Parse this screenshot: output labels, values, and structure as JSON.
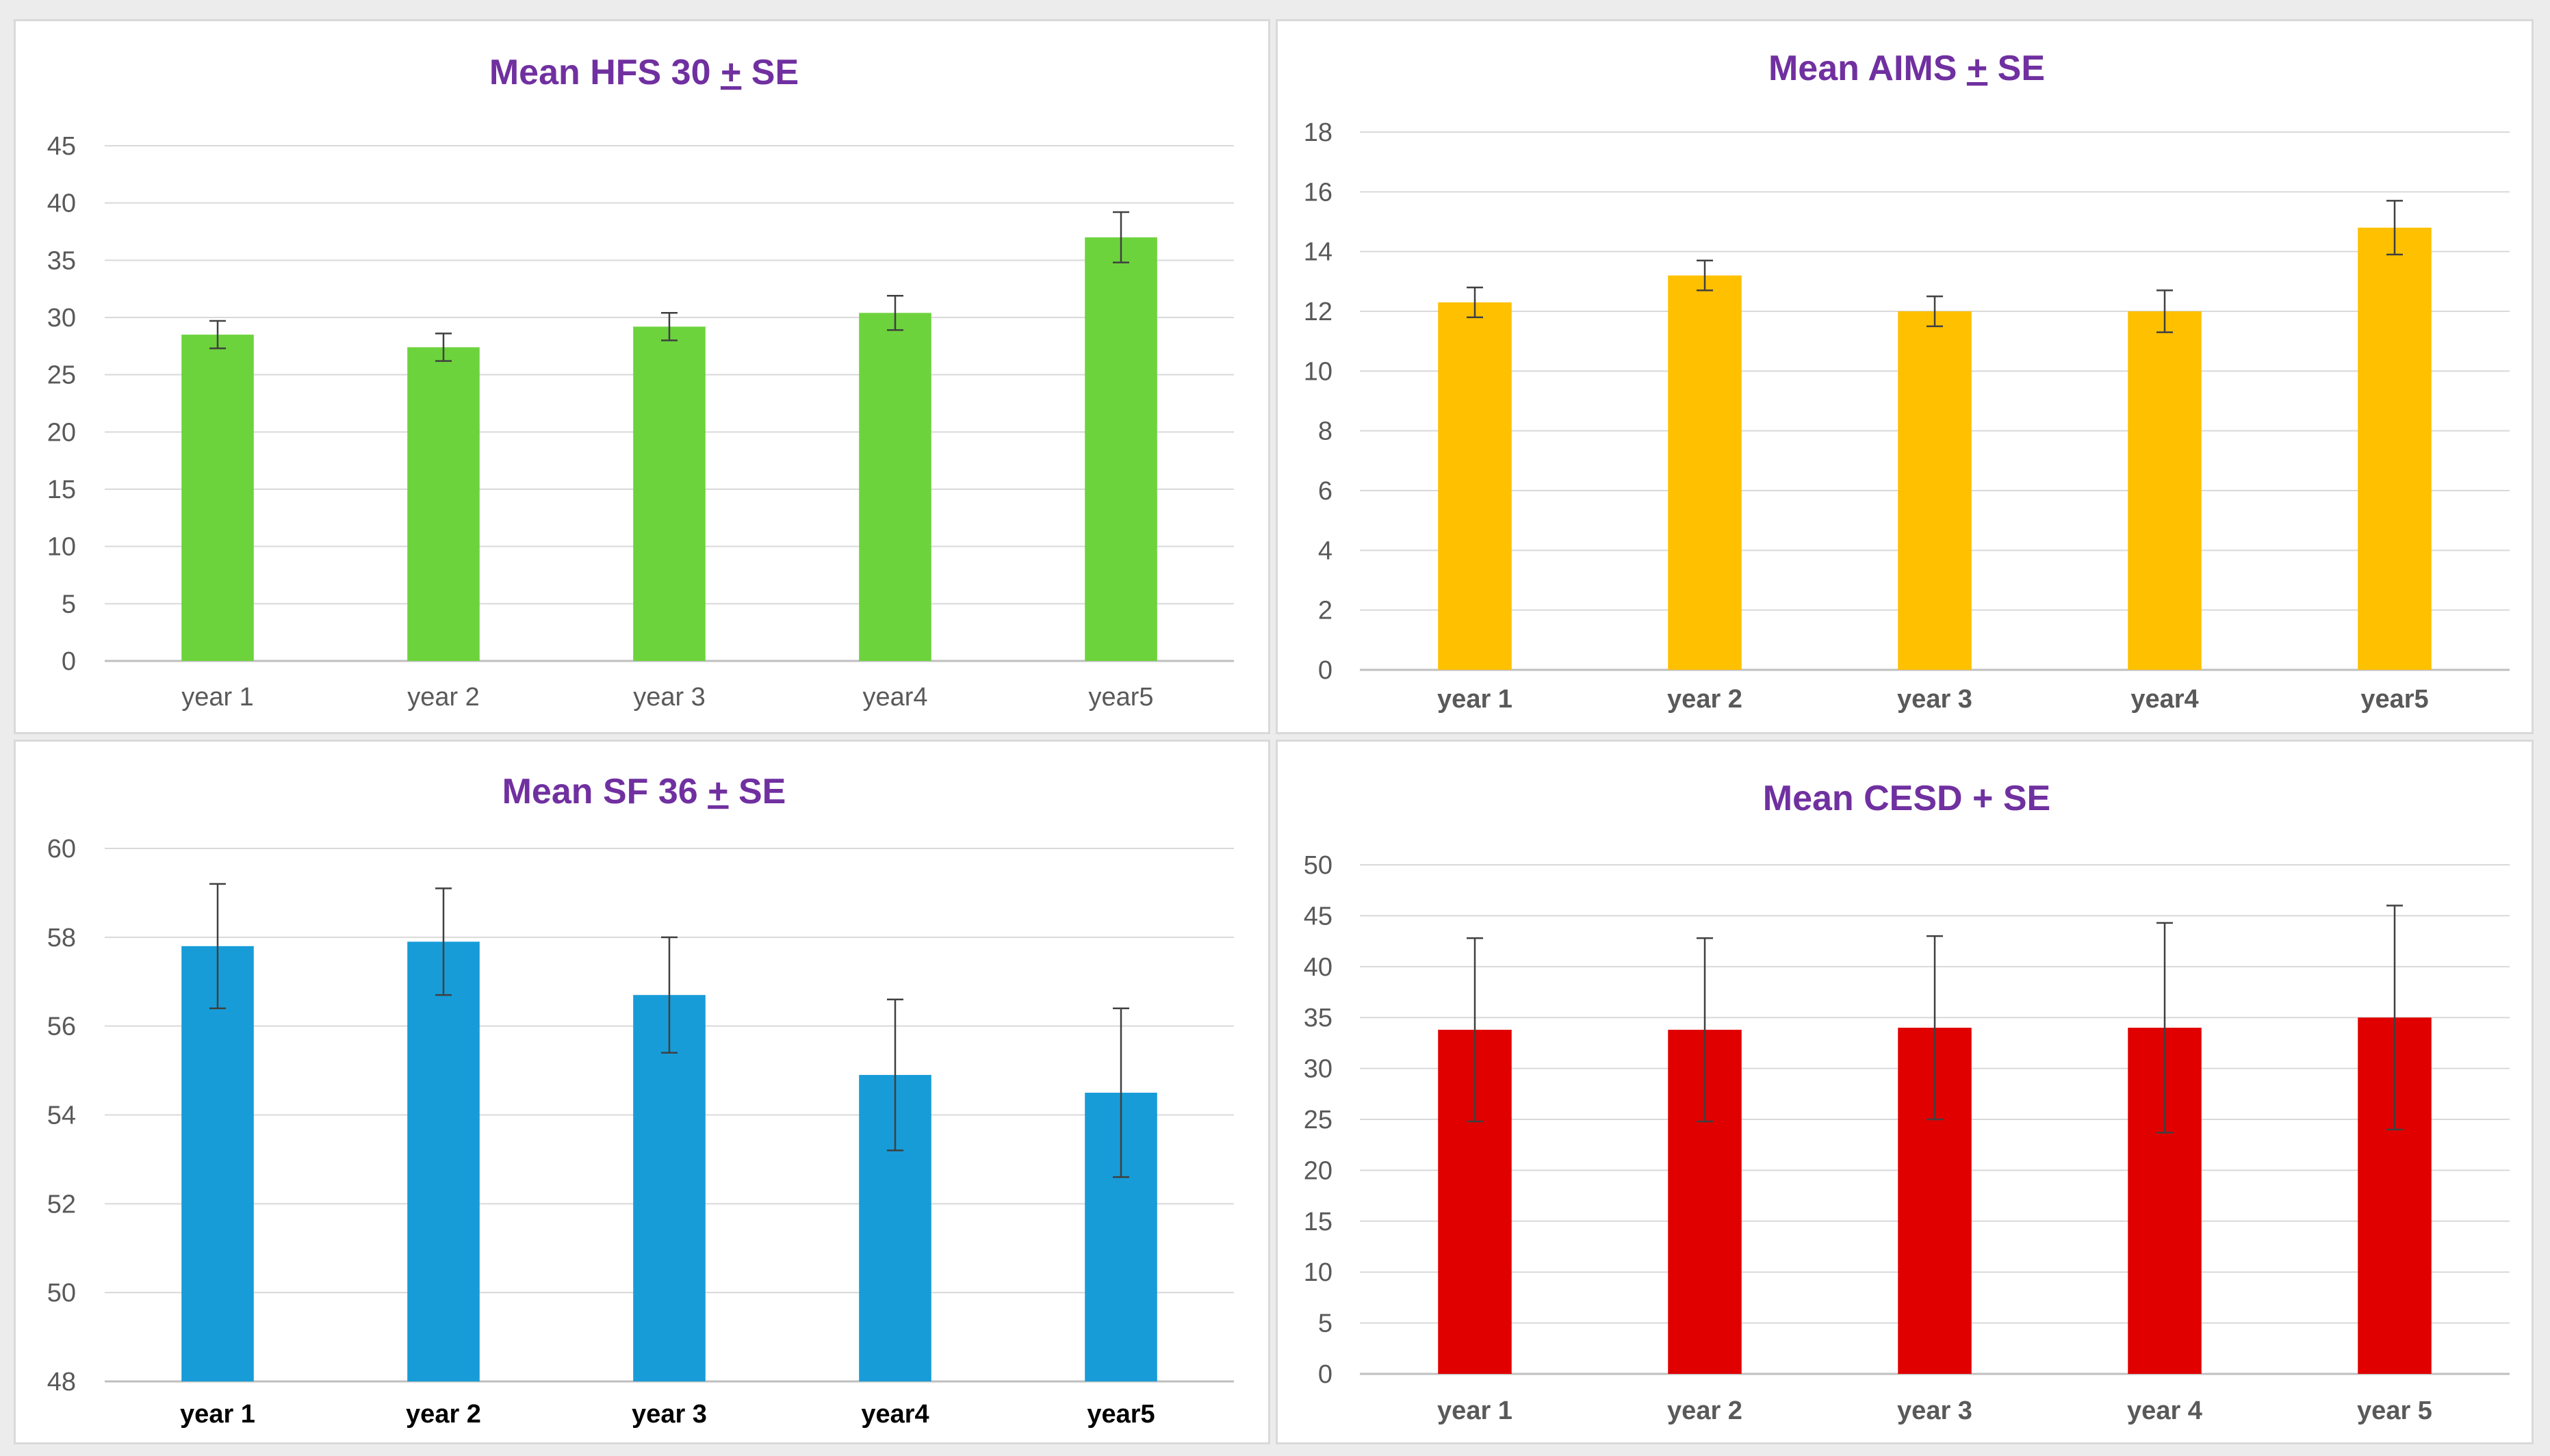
{
  "chart_data": [
    {
      "type": "bar",
      "title_main": "Mean HFS 30 ",
      "title_pm": "+",
      "title_tail": " SE",
      "categories": [
        "year 1",
        "year 2",
        "year 3",
        "year4",
        "year5"
      ],
      "values": [
        28.5,
        27.4,
        29.2,
        30.4,
        37.0
      ],
      "errors": [
        1.2,
        1.2,
        1.2,
        1.5,
        2.2
      ],
      "ylim": [
        0,
        45
      ],
      "yticks": [
        0,
        5,
        10,
        15,
        20,
        25,
        30,
        35,
        40,
        45
      ],
      "bar_color": "#6dd33d",
      "bold_categories": false,
      "xlabel": "",
      "ylabel": ""
    },
    {
      "type": "bar",
      "title_main": "Mean AIMS ",
      "title_pm": "+",
      "title_tail": " SE",
      "categories": [
        "year 1",
        "year 2",
        "year 3",
        "year4",
        "year5"
      ],
      "values": [
        12.3,
        13.2,
        12.0,
        12.0,
        14.8
      ],
      "errors": [
        0.5,
        0.5,
        0.5,
        0.7,
        0.9
      ],
      "ylim": [
        0,
        18
      ],
      "yticks": [
        0,
        2,
        4,
        6,
        8,
        10,
        12,
        14,
        16,
        18
      ],
      "bar_color": "#ffc000",
      "bold_categories": true,
      "xlabel": "",
      "ylabel": ""
    },
    {
      "type": "bar",
      "title_main": "Mean SF 36 ",
      "title_pm": "+",
      "title_tail": " SE",
      "categories": [
        "year 1",
        "year 2",
        "year 3",
        "year4",
        "year5"
      ],
      "values": [
        57.8,
        57.9,
        56.7,
        54.9,
        54.5
      ],
      "errors": [
        1.4,
        1.2,
        1.3,
        1.7,
        1.9
      ],
      "ylim": [
        48,
        60
      ],
      "yticks": [
        48,
        50,
        52,
        54,
        56,
        58,
        60
      ],
      "bar_color": "#179cd8",
      "bold_categories": true,
      "xlabel": "",
      "ylabel": ""
    },
    {
      "type": "bar",
      "title_main": "Mean CESD + SE",
      "title_pm": "",
      "title_tail": "",
      "categories": [
        "year 1",
        "year 2",
        "year 3",
        "year 4",
        "year 5"
      ],
      "values": [
        33.8,
        33.8,
        34.0,
        34.0,
        35.0
      ],
      "errors": [
        9.0,
        9.0,
        9.0,
        10.3,
        11.0
      ],
      "ylim": [
        0,
        50
      ],
      "yticks": [
        0,
        5,
        10,
        15,
        20,
        25,
        30,
        35,
        40,
        45,
        50
      ],
      "bar_color": "#e00000",
      "bold_categories": true,
      "xlabel": "",
      "ylabel": ""
    }
  ]
}
